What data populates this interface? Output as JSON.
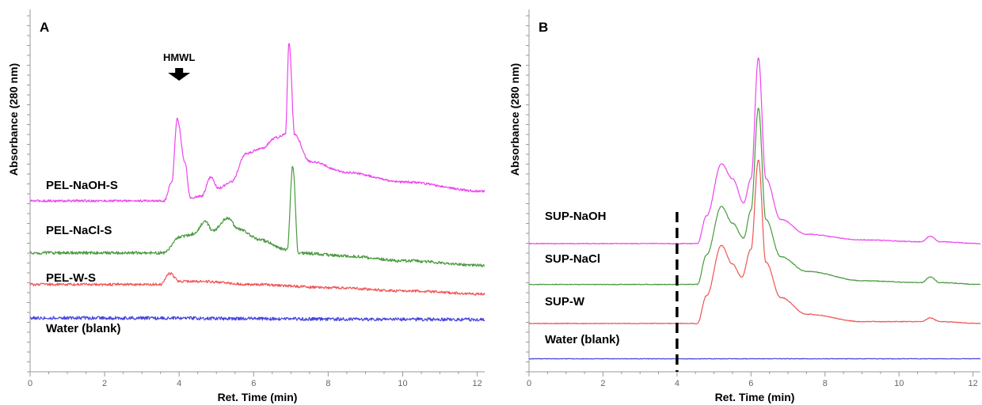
{
  "chart_data": [
    {
      "type": "line",
      "panel": "A",
      "xlabel": "Ret. Time (min)",
      "ylabel": "Absorbance (280 nm)",
      "xlim": [
        0,
        12.2
      ],
      "xticks": [
        "0",
        "2",
        "4",
        "6",
        "8",
        "10",
        "12"
      ],
      "y_tick_labels": false,
      "annotation": {
        "text": "HMWL",
        "x": 4.0,
        "arrow": "down"
      },
      "series": [
        {
          "name": "PEL-NaOH-S",
          "color": "#ee44ee",
          "baseline": 0.72,
          "noise": 0.006,
          "points": [
            [
              0,
              0
            ],
            [
              3.6,
              0
            ],
            [
              3.8,
              0.12
            ],
            [
              3.95,
              0.52
            ],
            [
              4.15,
              0.25
            ],
            [
              4.3,
              0.02
            ],
            [
              4.6,
              0.03
            ],
            [
              4.85,
              0.15
            ],
            [
              5.05,
              0.08
            ],
            [
              5.4,
              0.12
            ],
            [
              5.8,
              0.3
            ],
            [
              6.2,
              0.33
            ],
            [
              6.6,
              0.4
            ],
            [
              6.85,
              0.42
            ],
            [
              6.95,
              1.0
            ],
            [
              7.1,
              0.42
            ],
            [
              7.5,
              0.25
            ],
            [
              8.5,
              0.18
            ],
            [
              10,
              0.12
            ],
            [
              12.2,
              0.06
            ]
          ]
        },
        {
          "name": "PEL-NaCl-S",
          "color": "#4a9a40",
          "baseline": 0.44,
          "noise": 0.008,
          "points": [
            [
              0,
              0
            ],
            [
              3.6,
              0
            ],
            [
              4.0,
              0.1
            ],
            [
              4.4,
              0.12
            ],
            [
              4.7,
              0.2
            ],
            [
              4.9,
              0.14
            ],
            [
              5.3,
              0.22
            ],
            [
              5.6,
              0.15
            ],
            [
              6.2,
              0.08
            ],
            [
              6.9,
              0.02
            ],
            [
              7.05,
              0.55
            ],
            [
              7.2,
              0.0
            ],
            [
              8.5,
              -0.02
            ],
            [
              10,
              -0.05
            ],
            [
              12.2,
              -0.08
            ]
          ]
        },
        {
          "name": "PEL-W-S",
          "color": "#ee5555",
          "baseline": 0.27,
          "noise": 0.007,
          "points": [
            [
              0,
              0
            ],
            [
              3.5,
              0
            ],
            [
              3.75,
              0.07
            ],
            [
              4.0,
              0.02
            ],
            [
              4.5,
              0.02
            ],
            [
              6,
              0.0
            ],
            [
              8,
              -0.02
            ],
            [
              10,
              -0.04
            ],
            [
              12.2,
              -0.06
            ]
          ]
        },
        {
          "name": "Water (blank)",
          "color": "#4444dd",
          "baseline": 0.09,
          "noise": 0.009,
          "points": [
            [
              0,
              0
            ],
            [
              12.2,
              -0.01
            ]
          ]
        }
      ]
    },
    {
      "type": "line",
      "panel": "B",
      "xlabel": "Ret. Time (min)",
      "ylabel": "Absorbance (280 nm)",
      "xlim": [
        0,
        12.2
      ],
      "xticks": [
        "0",
        "2",
        "4",
        "6",
        "8",
        "10",
        "12"
      ],
      "y_tick_labels": false,
      "vline_x": 4.0,
      "series": [
        {
          "name": "SUP-NaOH",
          "color": "#ee44ee",
          "baseline": 0.49,
          "noise": 0.002,
          "points": [
            [
              0,
              0
            ],
            [
              4.55,
              0
            ],
            [
              4.8,
              0.15
            ],
            [
              5.2,
              0.43
            ],
            [
              5.5,
              0.35
            ],
            [
              5.8,
              0.22
            ],
            [
              6.0,
              0.35
            ],
            [
              6.2,
              1.0
            ],
            [
              6.4,
              0.35
            ],
            [
              6.8,
              0.13
            ],
            [
              7.5,
              0.05
            ],
            [
              9,
              0.02
            ],
            [
              10.6,
              0.01
            ],
            [
              10.85,
              0.04
            ],
            [
              11.1,
              0.01
            ],
            [
              12.2,
              0.0
            ]
          ]
        },
        {
          "name": "SUP-NaCl",
          "color": "#4a9a40",
          "baseline": 0.27,
          "noise": 0.002,
          "points": [
            [
              0,
              0
            ],
            [
              4.55,
              0
            ],
            [
              4.8,
              0.16
            ],
            [
              5.2,
              0.42
            ],
            [
              5.5,
              0.33
            ],
            [
              5.8,
              0.25
            ],
            [
              6.0,
              0.4
            ],
            [
              6.2,
              0.95
            ],
            [
              6.4,
              0.35
            ],
            [
              6.8,
              0.15
            ],
            [
              7.5,
              0.07
            ],
            [
              9,
              0.02
            ],
            [
              10.6,
              0.01
            ],
            [
              10.85,
              0.04
            ],
            [
              11.1,
              0.01
            ],
            [
              12.2,
              0.0
            ]
          ]
        },
        {
          "name": "SUP-W",
          "color": "#ee5555",
          "baseline": 0.06,
          "noise": 0.002,
          "points": [
            [
              0,
              0
            ],
            [
              4.55,
              0
            ],
            [
              4.8,
              0.15
            ],
            [
              5.2,
              0.42
            ],
            [
              5.5,
              0.32
            ],
            [
              5.75,
              0.25
            ],
            [
              6.0,
              0.4
            ],
            [
              6.2,
              0.88
            ],
            [
              6.4,
              0.33
            ],
            [
              6.8,
              0.14
            ],
            [
              7.5,
              0.05
            ],
            [
              9,
              0.01
            ],
            [
              10.6,
              0.01
            ],
            [
              10.85,
              0.03
            ],
            [
              11.1,
              0.01
            ],
            [
              12.2,
              0.0
            ]
          ]
        },
        {
          "name": "Water (blank)",
          "color": "#4444dd",
          "baseline": -0.13,
          "noise": 0.0015,
          "points": [
            [
              0,
              0
            ],
            [
              12.2,
              0
            ]
          ]
        }
      ]
    }
  ]
}
